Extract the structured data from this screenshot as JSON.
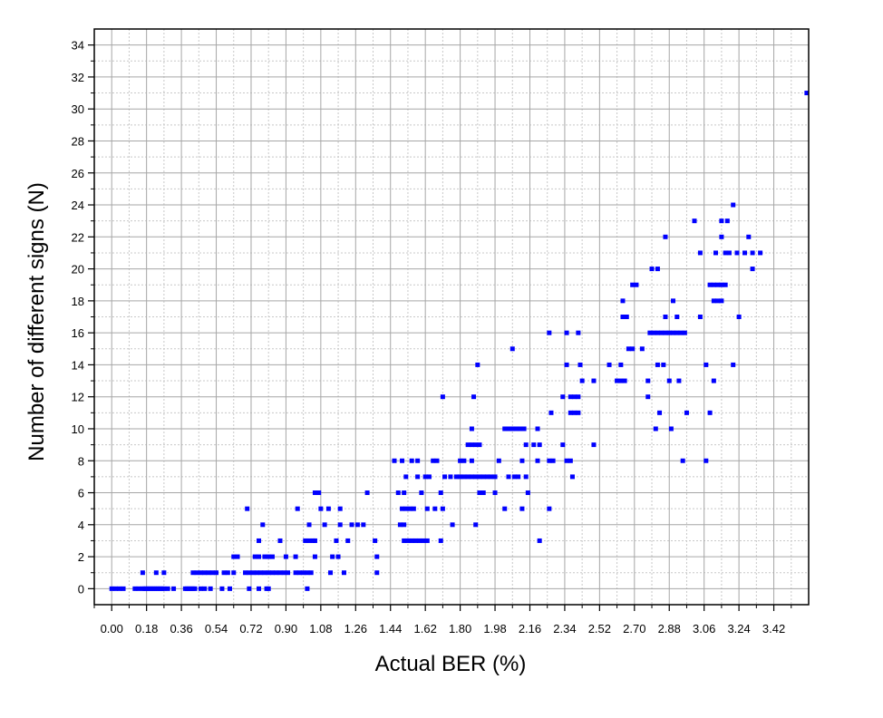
{
  "chart_data": {
    "type": "scatter",
    "title": "",
    "xlabel": "Actual BER (%)",
    "ylabel": "Number of different signs (N)",
    "xlim": [
      -0.09,
      3.6
    ],
    "ylim": [
      -1,
      35
    ],
    "xticks": [
      "0.00",
      "0.18",
      "0.36",
      "0.54",
      "0.72",
      "0.90",
      "1.08",
      "1.26",
      "1.44",
      "1.62",
      "1.80",
      "1.98",
      "2.16",
      "2.34",
      "2.52",
      "2.70",
      "2.88",
      "3.06",
      "3.24",
      "3.42"
    ],
    "yticks": [
      "0",
      "2",
      "4",
      "6",
      "8",
      "10",
      "12",
      "14",
      "16",
      "18",
      "20",
      "22",
      "24",
      "26",
      "28",
      "30",
      "32",
      "34"
    ],
    "grid": true,
    "marker_color": "#0000ff",
    "series": [
      {
        "name": "samples",
        "points": [
          [
            0.0,
            0
          ],
          [
            0.02,
            0
          ],
          [
            0.04,
            0
          ],
          [
            0.06,
            0
          ],
          [
            0.12,
            0
          ],
          [
            0.14,
            0
          ],
          [
            0.16,
            0
          ],
          [
            0.17,
            0
          ],
          [
            0.18,
            0
          ],
          [
            0.19,
            0
          ],
          [
            0.2,
            0
          ],
          [
            0.21,
            0
          ],
          [
            0.22,
            0
          ],
          [
            0.23,
            0
          ],
          [
            0.24,
            0
          ],
          [
            0.25,
            0
          ],
          [
            0.26,
            0
          ],
          [
            0.27,
            0
          ],
          [
            0.29,
            0
          ],
          [
            0.32,
            0
          ],
          [
            0.38,
            0
          ],
          [
            0.39,
            0
          ],
          [
            0.4,
            0
          ],
          [
            0.41,
            0
          ],
          [
            0.42,
            0
          ],
          [
            0.43,
            0
          ],
          [
            0.46,
            0
          ],
          [
            0.48,
            0
          ],
          [
            0.51,
            0
          ],
          [
            0.57,
            0
          ],
          [
            0.61,
            0
          ],
          [
            0.71,
            0
          ],
          [
            0.76,
            0
          ],
          [
            0.8,
            0
          ],
          [
            0.81,
            0
          ],
          [
            1.01,
            0
          ],
          [
            0.16,
            1
          ],
          [
            0.23,
            1
          ],
          [
            0.27,
            1
          ],
          [
            0.42,
            1
          ],
          [
            0.44,
            1
          ],
          [
            0.46,
            1
          ],
          [
            0.48,
            1
          ],
          [
            0.5,
            1
          ],
          [
            0.52,
            1
          ],
          [
            0.54,
            1
          ],
          [
            0.58,
            1
          ],
          [
            0.6,
            1
          ],
          [
            0.63,
            1
          ],
          [
            0.69,
            1
          ],
          [
            0.71,
            1
          ],
          [
            0.73,
            1
          ],
          [
            0.75,
            1
          ],
          [
            0.77,
            1
          ],
          [
            0.79,
            1
          ],
          [
            0.81,
            1
          ],
          [
            0.83,
            1
          ],
          [
            0.85,
            1
          ],
          [
            0.87,
            1
          ],
          [
            0.89,
            1
          ],
          [
            0.91,
            1
          ],
          [
            0.95,
            1
          ],
          [
            0.97,
            1
          ],
          [
            0.99,
            1
          ],
          [
            1.01,
            1
          ],
          [
            1.03,
            1
          ],
          [
            1.13,
            1
          ],
          [
            1.2,
            1
          ],
          [
            1.37,
            1
          ],
          [
            0.63,
            2
          ],
          [
            0.65,
            2
          ],
          [
            0.74,
            2
          ],
          [
            0.76,
            2
          ],
          [
            0.79,
            2
          ],
          [
            0.81,
            2
          ],
          [
            0.83,
            2
          ],
          [
            0.9,
            2
          ],
          [
            0.95,
            2
          ],
          [
            1.05,
            2
          ],
          [
            1.14,
            2
          ],
          [
            1.17,
            2
          ],
          [
            1.37,
            2
          ],
          [
            0.76,
            3
          ],
          [
            0.87,
            3
          ],
          [
            1.0,
            3
          ],
          [
            1.02,
            3
          ],
          [
            1.04,
            3
          ],
          [
            1.05,
            3
          ],
          [
            1.16,
            3
          ],
          [
            1.22,
            3
          ],
          [
            1.36,
            3
          ],
          [
            1.51,
            3
          ],
          [
            1.53,
            3
          ],
          [
            1.55,
            3
          ],
          [
            1.57,
            3
          ],
          [
            1.59,
            3
          ],
          [
            1.61,
            3
          ],
          [
            1.63,
            3
          ],
          [
            1.7,
            3
          ],
          [
            2.21,
            3
          ],
          [
            0.78,
            4
          ],
          [
            1.02,
            4
          ],
          [
            1.1,
            4
          ],
          [
            1.18,
            4
          ],
          [
            1.24,
            4
          ],
          [
            1.27,
            4
          ],
          [
            1.3,
            4
          ],
          [
            1.49,
            4
          ],
          [
            1.51,
            4
          ],
          [
            1.76,
            4
          ],
          [
            1.88,
            4
          ],
          [
            0.7,
            5
          ],
          [
            0.96,
            5
          ],
          [
            1.08,
            5
          ],
          [
            1.12,
            5
          ],
          [
            1.18,
            5
          ],
          [
            1.5,
            5
          ],
          [
            1.52,
            5
          ],
          [
            1.54,
            5
          ],
          [
            1.56,
            5
          ],
          [
            1.63,
            5
          ],
          [
            1.67,
            5
          ],
          [
            1.71,
            5
          ],
          [
            2.03,
            5
          ],
          [
            2.12,
            5
          ],
          [
            2.26,
            5
          ],
          [
            1.05,
            6
          ],
          [
            1.07,
            6
          ],
          [
            1.32,
            6
          ],
          [
            1.48,
            6
          ],
          [
            1.51,
            6
          ],
          [
            1.6,
            6
          ],
          [
            1.7,
            6
          ],
          [
            1.9,
            6
          ],
          [
            1.92,
            6
          ],
          [
            1.98,
            6
          ],
          [
            2.15,
            6
          ],
          [
            1.52,
            7
          ],
          [
            1.58,
            7
          ],
          [
            1.62,
            7
          ],
          [
            1.64,
            7
          ],
          [
            1.72,
            7
          ],
          [
            1.75,
            7
          ],
          [
            1.78,
            7
          ],
          [
            1.8,
            7
          ],
          [
            1.82,
            7
          ],
          [
            1.84,
            7
          ],
          [
            1.86,
            7
          ],
          [
            1.88,
            7
          ],
          [
            1.9,
            7
          ],
          [
            1.92,
            7
          ],
          [
            1.94,
            7
          ],
          [
            1.96,
            7
          ],
          [
            1.98,
            7
          ],
          [
            2.05,
            7
          ],
          [
            2.08,
            7
          ],
          [
            2.1,
            7
          ],
          [
            2.14,
            7
          ],
          [
            2.38,
            7
          ],
          [
            1.46,
            8
          ],
          [
            1.5,
            8
          ],
          [
            1.55,
            8
          ],
          [
            1.58,
            8
          ],
          [
            1.66,
            8
          ],
          [
            1.68,
            8
          ],
          [
            1.8,
            8
          ],
          [
            1.82,
            8
          ],
          [
            1.86,
            8
          ],
          [
            2.0,
            8
          ],
          [
            2.12,
            8
          ],
          [
            2.2,
            8
          ],
          [
            2.26,
            8
          ],
          [
            2.28,
            8
          ],
          [
            2.35,
            8
          ],
          [
            2.37,
            8
          ],
          [
            2.95,
            8
          ],
          [
            3.07,
            8
          ],
          [
            1.84,
            9
          ],
          [
            1.86,
            9
          ],
          [
            1.88,
            9
          ],
          [
            1.9,
            9
          ],
          [
            2.14,
            9
          ],
          [
            2.18,
            9
          ],
          [
            2.21,
            9
          ],
          [
            2.33,
            9
          ],
          [
            2.49,
            9
          ],
          [
            1.86,
            10
          ],
          [
            2.03,
            10
          ],
          [
            2.05,
            10
          ],
          [
            2.07,
            10
          ],
          [
            2.09,
            10
          ],
          [
            2.11,
            10
          ],
          [
            2.13,
            10
          ],
          [
            2.2,
            10
          ],
          [
            2.81,
            10
          ],
          [
            2.89,
            10
          ],
          [
            2.27,
            11
          ],
          [
            2.37,
            11
          ],
          [
            2.39,
            11
          ],
          [
            2.41,
            11
          ],
          [
            2.83,
            11
          ],
          [
            2.97,
            11
          ],
          [
            3.09,
            11
          ],
          [
            1.71,
            12
          ],
          [
            1.87,
            12
          ],
          [
            2.33,
            12
          ],
          [
            2.37,
            12
          ],
          [
            2.39,
            12
          ],
          [
            2.41,
            12
          ],
          [
            2.77,
            12
          ],
          [
            2.43,
            13
          ],
          [
            2.49,
            13
          ],
          [
            2.61,
            13
          ],
          [
            2.63,
            13
          ],
          [
            2.65,
            13
          ],
          [
            2.77,
            13
          ],
          [
            2.88,
            13
          ],
          [
            2.93,
            13
          ],
          [
            3.11,
            13
          ],
          [
            1.89,
            14
          ],
          [
            2.35,
            14
          ],
          [
            2.42,
            14
          ],
          [
            2.57,
            14
          ],
          [
            2.63,
            14
          ],
          [
            2.82,
            14
          ],
          [
            2.85,
            14
          ],
          [
            3.07,
            14
          ],
          [
            3.21,
            14
          ],
          [
            2.07,
            15
          ],
          [
            2.67,
            15
          ],
          [
            2.69,
            15
          ],
          [
            2.74,
            15
          ],
          [
            2.26,
            16
          ],
          [
            2.35,
            16
          ],
          [
            2.41,
            16
          ],
          [
            2.78,
            16
          ],
          [
            2.8,
            16
          ],
          [
            2.82,
            16
          ],
          [
            2.84,
            16
          ],
          [
            2.86,
            16
          ],
          [
            2.88,
            16
          ],
          [
            2.9,
            16
          ],
          [
            2.92,
            16
          ],
          [
            2.94,
            16
          ],
          [
            2.96,
            16
          ],
          [
            2.64,
            17
          ],
          [
            2.66,
            17
          ],
          [
            2.86,
            17
          ],
          [
            2.92,
            17
          ],
          [
            3.04,
            17
          ],
          [
            3.24,
            17
          ],
          [
            2.64,
            18
          ],
          [
            2.9,
            18
          ],
          [
            3.11,
            18
          ],
          [
            3.13,
            18
          ],
          [
            3.15,
            18
          ],
          [
            2.69,
            19
          ],
          [
            2.71,
            19
          ],
          [
            3.09,
            19
          ],
          [
            3.11,
            19
          ],
          [
            3.13,
            19
          ],
          [
            3.15,
            19
          ],
          [
            3.17,
            19
          ],
          [
            2.79,
            20
          ],
          [
            2.82,
            20
          ],
          [
            3.31,
            20
          ],
          [
            3.04,
            21
          ],
          [
            3.12,
            21
          ],
          [
            3.17,
            21
          ],
          [
            3.19,
            21
          ],
          [
            3.23,
            21
          ],
          [
            3.27,
            21
          ],
          [
            3.31,
            21
          ],
          [
            3.35,
            21
          ],
          [
            2.86,
            22
          ],
          [
            3.15,
            22
          ],
          [
            3.29,
            22
          ],
          [
            3.01,
            23
          ],
          [
            3.15,
            23
          ],
          [
            3.18,
            23
          ],
          [
            3.21,
            24
          ],
          [
            3.59,
            31
          ]
        ]
      }
    ]
  }
}
